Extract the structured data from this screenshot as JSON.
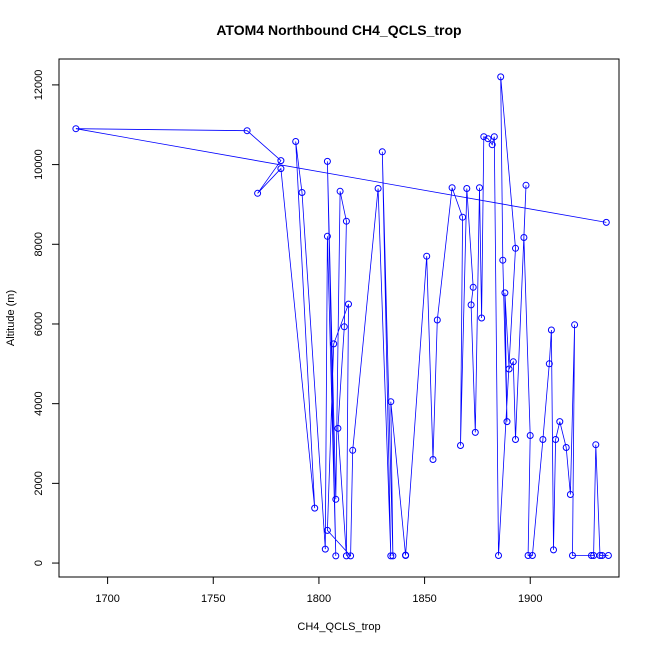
{
  "chart_data": {
    "type": "scatter",
    "title": "ATOM4 Northbound CH4_QCLS_trop",
    "xlabel": "CH4_QCLS_trop",
    "ylabel": "Altitude (m)",
    "xlim": [
      1677,
      1942
    ],
    "ylim": [
      -350,
      12650
    ],
    "x_ticks": [
      1700,
      1750,
      1800,
      1850,
      1900
    ],
    "y_ticks": [
      0,
      2000,
      4000,
      6000,
      8000,
      10000,
      12000
    ],
    "grid": false,
    "legend": "none",
    "series": [
      {
        "color": "#0000ff",
        "mode": "lines+markers",
        "x": [
          1936,
          1685,
          1766,
          1782,
          1771,
          1782,
          1798,
          1789,
          1792,
          1803,
          1804,
          1808,
          1804,
          1808,
          1810,
          1813,
          1812,
          1809,
          1813,
          1814,
          1807,
          1804,
          1815,
          1816,
          1828,
          1834,
          1830,
          1835,
          1834,
          1841,
          1841,
          1851,
          1854,
          1856,
          1863,
          1868,
          1867,
          1870,
          1873,
          1872,
          1874,
          1876,
          1877,
          1878,
          1880,
          1882,
          1883,
          1885,
          1893,
          1886,
          1887,
          1889,
          1888,
          1890,
          1892,
          1893,
          1898,
          1897,
          1900,
          1899,
          1901,
          1906,
          1909,
          1910,
          1911,
          1912,
          1914,
          1917,
          1919,
          1921,
          1920,
          1929,
          1930,
          1931,
          1933,
          1934,
          1937
        ],
        "y": [
          8550,
          10900,
          10850,
          10100,
          9280,
          9900,
          1380,
          10580,
          9300,
          350,
          8200,
          180,
          10080,
          1600,
          9330,
          8580,
          5930,
          3380,
          180,
          6500,
          5500,
          820,
          180,
          2830,
          9400,
          180,
          10320,
          180,
          4050,
          190,
          200,
          7700,
          2600,
          6100,
          9420,
          8680,
          2950,
          9400,
          6920,
          6480,
          3280,
          9420,
          6150,
          10700,
          10650,
          10500,
          10700,
          190,
          7900,
          12200,
          7600,
          3550,
          6780,
          4870,
          5050,
          3100,
          9480,
          8170,
          3200,
          190,
          190,
          3100,
          5000,
          5850,
          330,
          3100,
          3550,
          2900,
          1720,
          5980,
          190,
          190,
          190,
          2970,
          190,
          190,
          190
        ]
      }
    ]
  }
}
